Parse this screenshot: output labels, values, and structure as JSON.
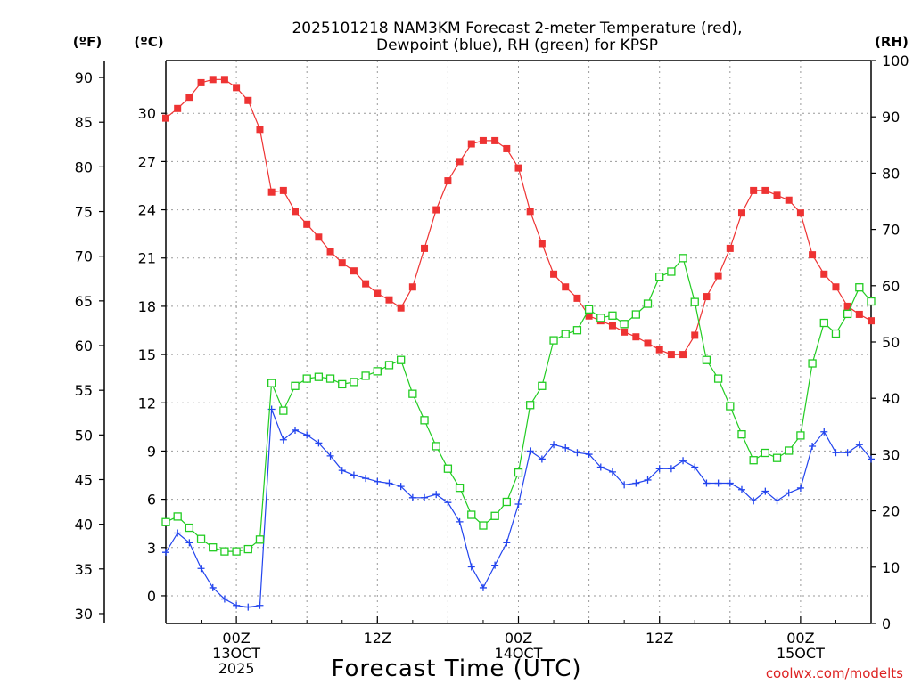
{
  "chart_data": {
    "type": "line",
    "title_line1": "2025101218 NAM3KM Forecast 2-meter Temperature (red),",
    "title_line2": "Dewpoint (blue), RH (green) for KPSP",
    "unit_f": "(ºF)",
    "unit_c": "(ºC)",
    "unit_rh": "(RH)",
    "xlabel": "Forecast Time (UTC)",
    "credit": "coolwx.com/modelts",
    "x_range_hours": [
      -6,
      54
    ],
    "x_ticks": [
      {
        "hour": 0,
        "lines": [
          "00Z",
          "13OCT",
          "2025"
        ]
      },
      {
        "hour": 12,
        "lines": [
          "12Z"
        ]
      },
      {
        "hour": 24,
        "lines": [
          "00Z",
          "14OCT"
        ]
      },
      {
        "hour": 36,
        "lines": [
          "12Z"
        ]
      },
      {
        "hour": 48,
        "lines": [
          "00Z",
          "15OCT"
        ]
      }
    ],
    "f_axis": {
      "ylim": [
        28.9,
        91.9
      ],
      "ticks": [
        "30",
        "35",
        "40",
        "45",
        "50",
        "55",
        "60",
        "65",
        "70",
        "75",
        "80",
        "85",
        "90"
      ]
    },
    "c_axis": {
      "ylim": [
        -1.72,
        33.28
      ],
      "ticks": [
        "0",
        "3",
        "6",
        "9",
        "12",
        "15",
        "18",
        "21",
        "24",
        "27",
        "30"
      ]
    },
    "rh_axis": {
      "ylim": [
        0,
        100
      ],
      "ticks": [
        "0",
        "10",
        "20",
        "30",
        "40",
        "50",
        "60",
        "70",
        "80",
        "90",
        "100"
      ]
    },
    "series": [
      {
        "name": "2-meter Temperature",
        "unit": "C",
        "color": "#ee3333",
        "marker": "filled-square",
        "values": [
          29.7,
          30.3,
          31.0,
          31.9,
          32.1,
          32.1,
          31.6,
          30.8,
          29.0,
          25.1,
          25.2,
          23.9,
          23.1,
          22.3,
          21.4,
          20.7,
          20.2,
          19.4,
          18.8,
          18.4,
          17.9,
          19.2,
          21.6,
          24.0,
          25.8,
          27.0,
          28.1,
          28.3,
          28.3,
          27.8,
          26.6,
          23.9,
          21.9,
          20.0,
          19.2,
          18.5,
          17.4,
          17.1,
          16.8,
          16.4,
          16.1,
          15.7,
          15.3,
          15.0,
          15.0,
          16.2,
          18.6,
          19.9,
          21.6,
          23.8,
          25.2,
          25.2,
          24.9,
          24.6,
          23.8,
          21.2,
          20.0,
          19.2,
          18.0,
          17.5,
          17.1
        ]
      },
      {
        "name": "Dewpoint",
        "unit": "C",
        "color": "#2244ee",
        "marker": "plus",
        "values": [
          2.7,
          3.9,
          3.3,
          1.7,
          0.5,
          -0.2,
          -0.6,
          -0.7,
          -0.6,
          11.6,
          9.7,
          10.3,
          10.0,
          9.5,
          8.7,
          7.8,
          7.5,
          7.3,
          7.1,
          7.0,
          6.8,
          6.1,
          6.1,
          6.3,
          5.8,
          4.6,
          1.8,
          0.5,
          1.9,
          3.3,
          5.7,
          9.0,
          8.5,
          9.4,
          9.2,
          8.9,
          8.8,
          8.0,
          7.7,
          6.9,
          7.0,
          7.2,
          7.9,
          7.9,
          8.4,
          8.0,
          7.0,
          7.0,
          7.0,
          6.6,
          5.9,
          6.5,
          5.9,
          6.4,
          6.7,
          9.3,
          10.2,
          8.9,
          8.9,
          9.4,
          8.5
        ]
      },
      {
        "name": "RH",
        "unit": "%",
        "color": "#22cc22",
        "marker": "open-square",
        "values": [
          18,
          19,
          17,
          15,
          13.5,
          12.8,
          12.8,
          13.2,
          14.9,
          42.7,
          37.8,
          42.2,
          43.5,
          43.8,
          43.5,
          42.5,
          42.9,
          44.0,
          44.8,
          45.9,
          46.8,
          40.8,
          36.1,
          31.5,
          27.5,
          24.1,
          19.3,
          17.4,
          19.1,
          21.6,
          26.8,
          38.8,
          42.2,
          50.3,
          51.4,
          52.1,
          55.8,
          54.3,
          54.7,
          53.2,
          54.9,
          56.8,
          61.6,
          62.5,
          64.9,
          57.1,
          46.8,
          43.5,
          38.6,
          33.6,
          29,
          30.3,
          29.4,
          30.7,
          33.4,
          46.2,
          53.4,
          51.5,
          55,
          59.7,
          57.2
        ]
      }
    ]
  }
}
